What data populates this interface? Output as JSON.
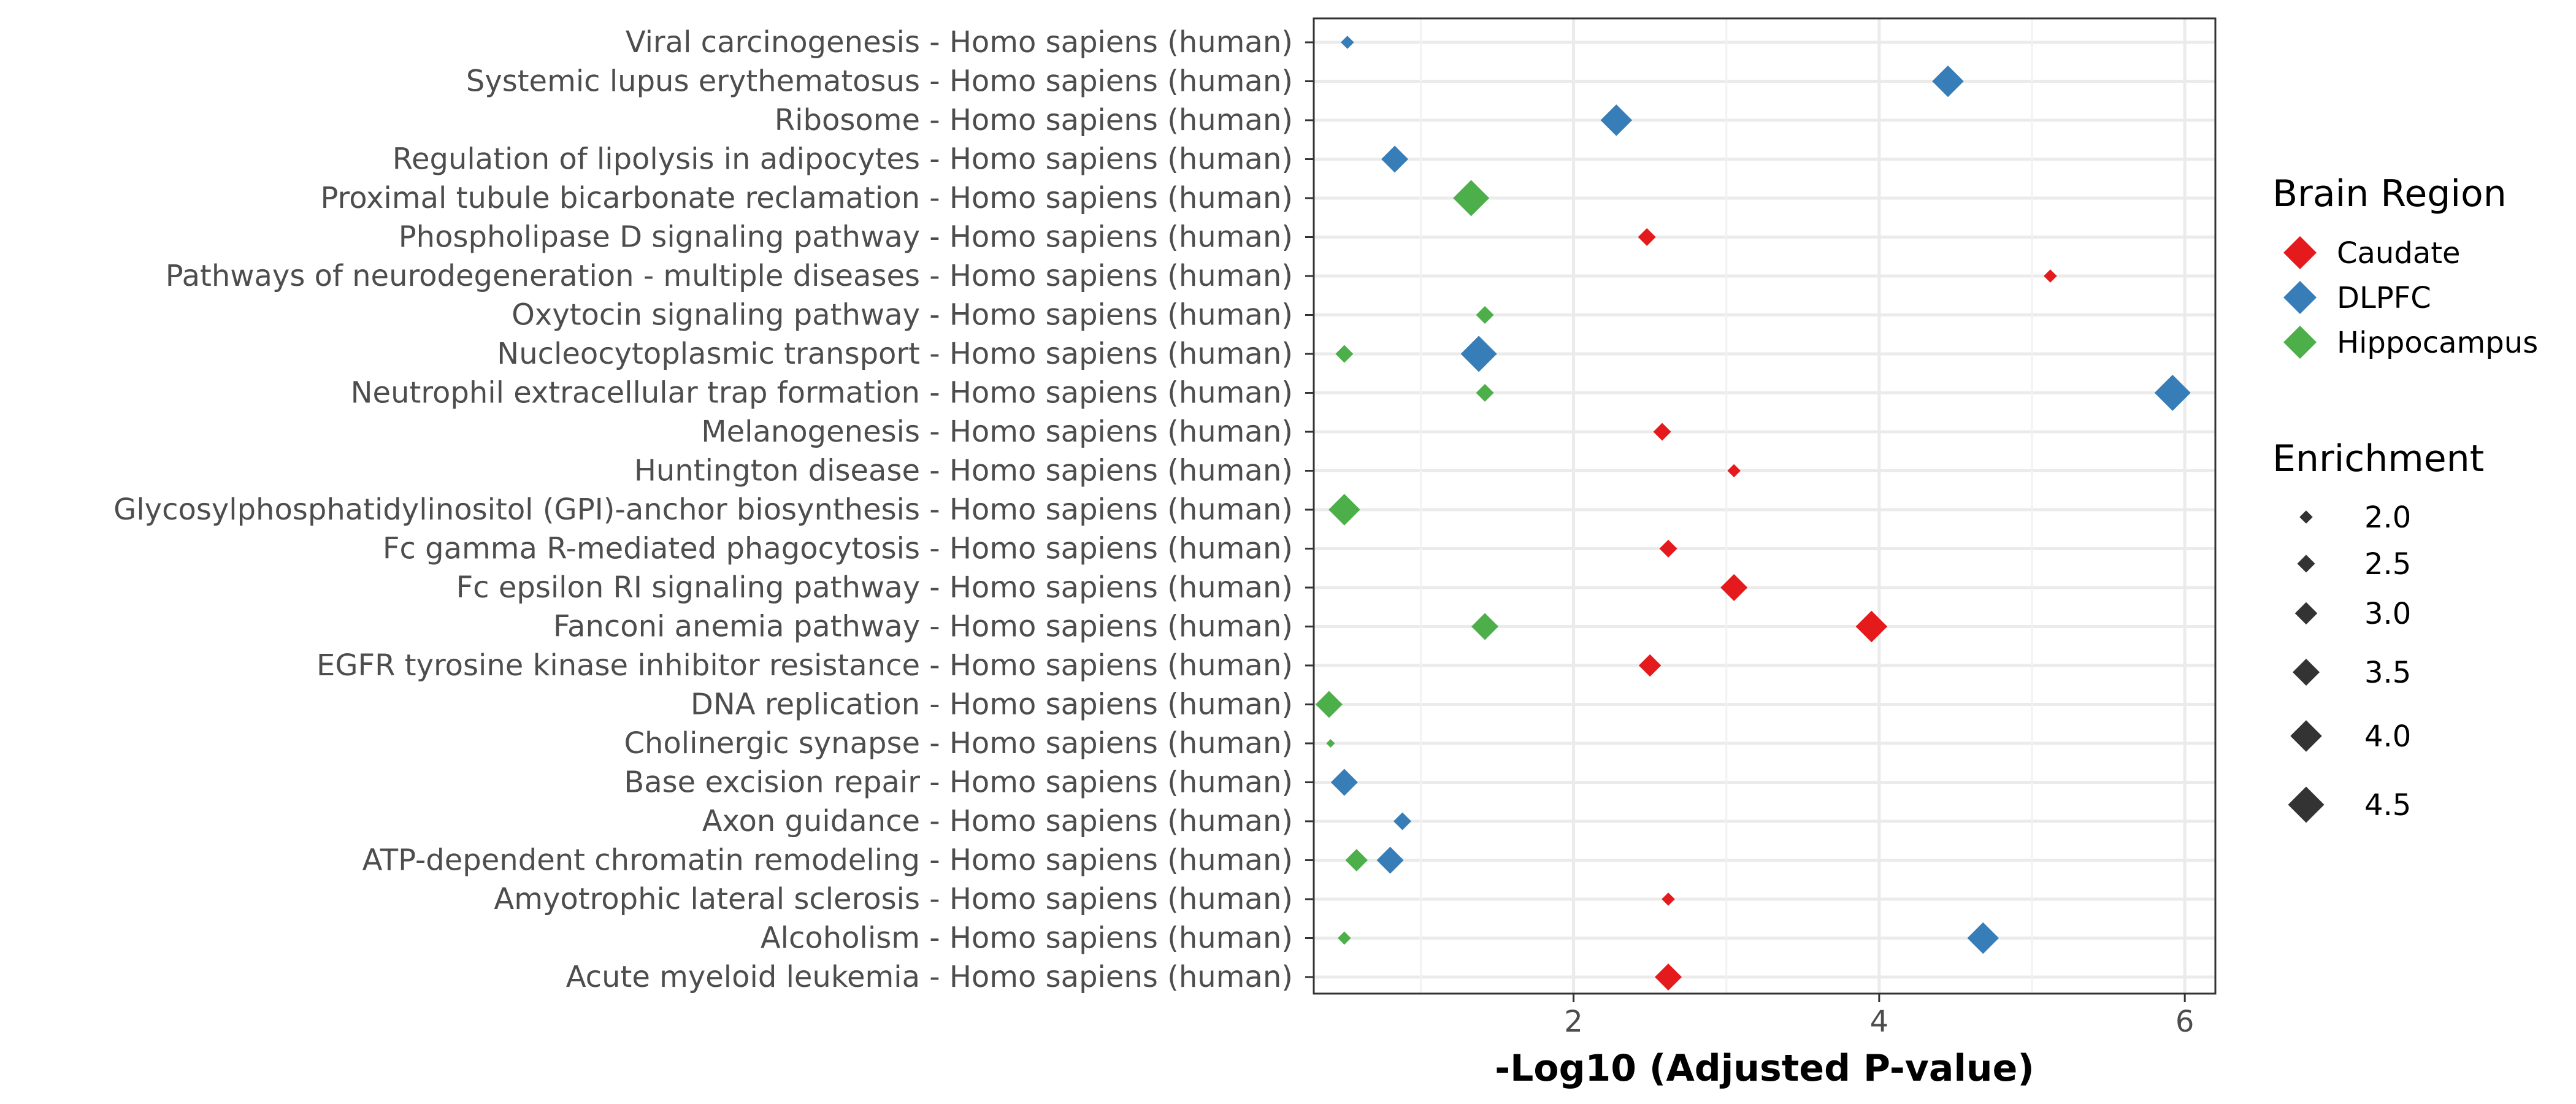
{
  "chart_data": {
    "type": "scatter",
    "title": "",
    "xlabel": "-Log10 (Adjusted P-value)",
    "ylabel": "",
    "xlim": [
      0.3,
      6.2
    ],
    "xticks": [
      "2",
      "4",
      "6"
    ],
    "grid": true,
    "legend_position": "right",
    "categories": [
      "Acute myeloid leukemia - Homo sapiens (human)",
      "Alcoholism - Homo sapiens (human)",
      "Amyotrophic lateral sclerosis - Homo sapiens (human)",
      "ATP-dependent chromatin remodeling - Homo sapiens (human)",
      "Axon guidance - Homo sapiens (human)",
      "Base excision repair - Homo sapiens (human)",
      "Cholinergic synapse - Homo sapiens (human)",
      "DNA replication - Homo sapiens (human)",
      "EGFR tyrosine kinase inhibitor resistance - Homo sapiens (human)",
      "Fanconi anemia pathway - Homo sapiens (human)",
      "Fc epsilon RI signaling pathway - Homo sapiens (human)",
      "Fc gamma R-mediated phagocytosis - Homo sapiens (human)",
      "Glycosylphosphatidylinositol (GPI)-anchor biosynthesis - Homo sapiens (human)",
      "Huntington disease - Homo sapiens (human)",
      "Melanogenesis - Homo sapiens (human)",
      "Neutrophil extracellular trap formation - Homo sapiens (human)",
      "Nucleocytoplasmic transport - Homo sapiens (human)",
      "Oxytocin signaling pathway - Homo sapiens (human)",
      "Pathways of neurodegeneration - multiple diseases - Homo sapiens (human)",
      "Phospholipase D signaling pathway - Homo sapiens (human)",
      "Proximal tubule bicarbonate reclamation - Homo sapiens (human)",
      "Regulation of lipolysis in adipocytes - Homo sapiens (human)",
      "Ribosome - Homo sapiens (human)",
      "Systemic lupus erythematosus - Homo sapiens (human)",
      "Viral carcinogenesis - Homo sapiens (human)"
    ],
    "series": [
      {
        "name": "Caudate",
        "color": "#E41A1C",
        "points": [
          {
            "category": "Acute myeloid leukemia - Homo sapiens (human)",
            "x": 2.62,
            "enrichment": 3.5
          },
          {
            "category": "Amyotrophic lateral sclerosis - Homo sapiens (human)",
            "x": 2.62,
            "enrichment": 2.0
          },
          {
            "category": "EGFR tyrosine kinase inhibitor resistance - Homo sapiens (human)",
            "x": 2.5,
            "enrichment": 3.0
          },
          {
            "category": "Fanconi anemia pathway - Homo sapiens (human)",
            "x": 3.95,
            "enrichment": 4.0
          },
          {
            "category": "Fc epsilon RI signaling pathway - Homo sapiens (human)",
            "x": 3.05,
            "enrichment": 3.5
          },
          {
            "category": "Fc gamma R-mediated phagocytosis - Homo sapiens (human)",
            "x": 2.62,
            "enrichment": 2.5
          },
          {
            "category": "Huntington disease - Homo sapiens (human)",
            "x": 3.05,
            "enrichment": 2.0
          },
          {
            "category": "Melanogenesis - Homo sapiens (human)",
            "x": 2.58,
            "enrichment": 2.5
          },
          {
            "category": "Pathways of neurodegeneration - multiple diseases - Homo sapiens (human)",
            "x": 5.12,
            "enrichment": 2.0
          },
          {
            "category": "Phospholipase D signaling pathway - Homo sapiens (human)",
            "x": 2.48,
            "enrichment": 2.5
          }
        ]
      },
      {
        "name": "DLPFC",
        "color": "#377EB8",
        "points": [
          {
            "category": "Alcoholism - Homo sapiens (human)",
            "x": 4.68,
            "enrichment": 4.0
          },
          {
            "category": "ATP-dependent chromatin remodeling - Homo sapiens (human)",
            "x": 0.8,
            "enrichment": 3.5
          },
          {
            "category": "Axon guidance - Homo sapiens (human)",
            "x": 0.88,
            "enrichment": 2.5
          },
          {
            "category": "Base excision repair - Homo sapiens (human)",
            "x": 0.5,
            "enrichment": 3.5
          },
          {
            "category": "Neutrophil extracellular trap formation - Homo sapiens (human)",
            "x": 5.92,
            "enrichment": 4.5
          },
          {
            "category": "Nucleocytoplasmic transport - Homo sapiens (human)",
            "x": 1.38,
            "enrichment": 4.5
          },
          {
            "category": "Regulation of lipolysis in adipocytes - Homo sapiens (human)",
            "x": 0.83,
            "enrichment": 3.5
          },
          {
            "category": "Ribosome - Homo sapiens (human)",
            "x": 2.28,
            "enrichment": 4.0
          },
          {
            "category": "Systemic lupus erythematosus - Homo sapiens (human)",
            "x": 4.45,
            "enrichment": 4.0
          },
          {
            "category": "Viral carcinogenesis - Homo sapiens (human)",
            "x": 0.52,
            "enrichment": 2.0
          }
        ]
      },
      {
        "name": "Hippocampus",
        "color": "#4DAF4A",
        "points": [
          {
            "category": "Alcoholism - Homo sapiens (human)",
            "x": 0.5,
            "enrichment": 2.0
          },
          {
            "category": "ATP-dependent chromatin remodeling - Homo sapiens (human)",
            "x": 0.58,
            "enrichment": 3.0
          },
          {
            "category": "Cholinergic synapse - Homo sapiens (human)",
            "x": 0.41,
            "enrichment": 1.5
          },
          {
            "category": "DNA replication - Homo sapiens (human)",
            "x": 0.4,
            "enrichment": 3.5
          },
          {
            "category": "Fanconi anemia pathway - Homo sapiens (human)",
            "x": 1.42,
            "enrichment": 3.5
          },
          {
            "category": "Glycosylphosphatidylinositol (GPI)-anchor biosynthesis - Homo sapiens (human)",
            "x": 0.5,
            "enrichment": 4.0
          },
          {
            "category": "Neutrophil extracellular trap formation - Homo sapiens (human)",
            "x": 1.42,
            "enrichment": 2.5
          },
          {
            "category": "Nucleocytoplasmic transport - Homo sapiens (human)",
            "x": 0.5,
            "enrichment": 2.5
          },
          {
            "category": "Oxytocin signaling pathway - Homo sapiens (human)",
            "x": 1.42,
            "enrichment": 2.5
          },
          {
            "category": "Proximal tubule bicarbonate reclamation - Homo sapiens (human)",
            "x": 1.33,
            "enrichment": 4.5
          }
        ]
      }
    ],
    "legend": {
      "color_title": "Brain Region",
      "size_title": "Enrichment",
      "size_values": [
        2.0,
        2.5,
        3.0,
        3.5,
        4.0,
        4.5
      ],
      "size_labels": [
        "2.0",
        "2.5",
        "3.0",
        "3.5",
        "4.0",
        "4.5"
      ]
    }
  }
}
